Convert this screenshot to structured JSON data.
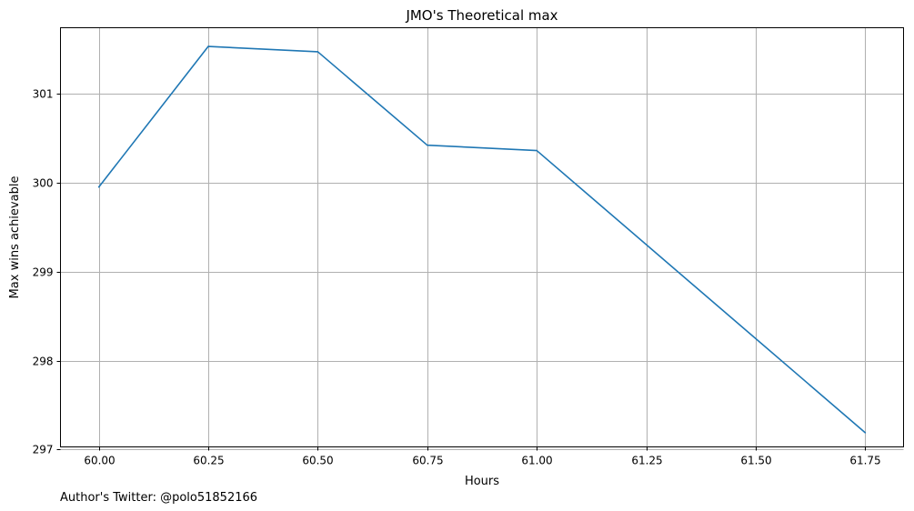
{
  "chart_data": {
    "type": "line",
    "title": "JMO's Theoretical max",
    "xlabel": "Hours",
    "ylabel": "Max wins achievable",
    "x": [
      60.0,
      60.25,
      60.5,
      60.75,
      61.0,
      61.75
    ],
    "series": [
      {
        "values": [
          299.95,
          301.53,
          301.47,
          300.42,
          300.36,
          297.19
        ],
        "color": "#1f77b4"
      }
    ],
    "xticks": [
      "60.00",
      "60.25",
      "60.50",
      "60.75",
      "61.00",
      "61.25",
      "61.50",
      "61.75"
    ],
    "yticks": [
      "297",
      "298",
      "299",
      "300",
      "301"
    ],
    "xlim": [
      59.9125,
      61.8375
    ],
    "ylim": [
      297.03,
      301.74
    ],
    "grid": true,
    "footer": "Author's Twitter: @polo51852166"
  }
}
